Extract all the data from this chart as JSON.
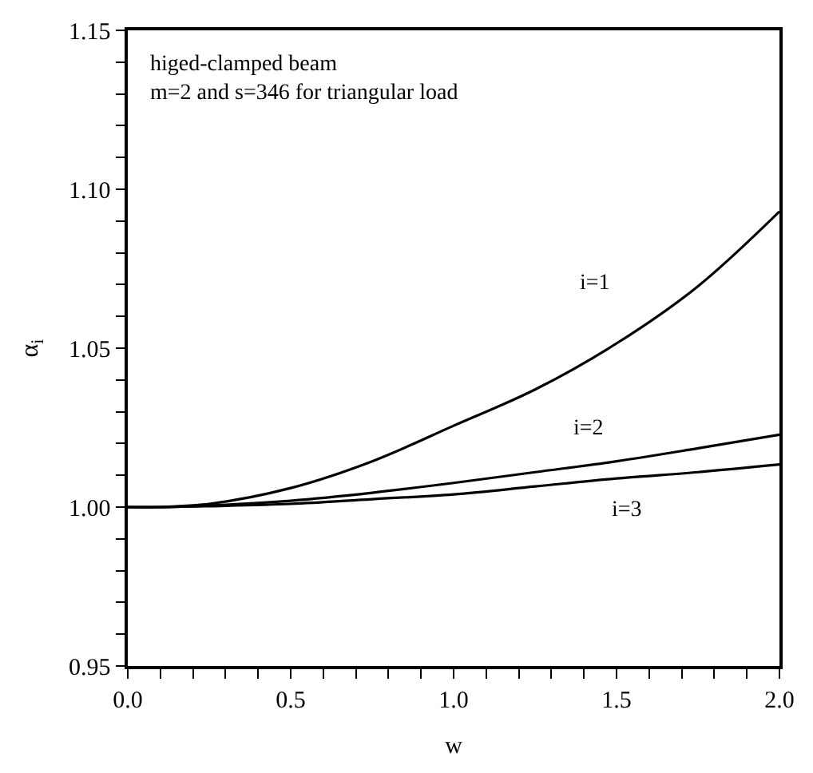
{
  "chart_data": {
    "type": "line",
    "xlabel": "w",
    "ylabel": "α$_{i}$",
    "x": [
      0,
      0.1,
      0.25,
      0.5,
      0.75,
      1.0,
      1.25,
      1.5,
      1.75,
      2.0
    ],
    "series": [
      {
        "name": "i=1",
        "color": "#000000",
        "values": [
          1.0,
          1.0,
          1.001,
          1.006,
          1.0144,
          1.0256,
          1.037,
          1.0515,
          1.0695,
          1.093
        ]
      },
      {
        "name": "i=2",
        "color": "#000000",
        "values": [
          1.0,
          1.0,
          1.0005,
          1.002,
          1.0045,
          1.0076,
          1.011,
          1.0144,
          1.0185,
          1.0228
        ]
      },
      {
        "name": "i=3",
        "color": "#000000",
        "values": [
          1.0,
          1.0,
          1.0003,
          1.001,
          1.0025,
          1.004,
          1.0065,
          1.009,
          1.011,
          1.0134
        ]
      }
    ],
    "annotations": [
      "higed-clamped beam\nm=2 and s=346 for triangular load"
    ],
    "xlim": [
      0,
      2
    ],
    "ylim": [
      0.95,
      1.15
    ],
    "xticks": [
      {
        "value": 0.0,
        "label": "0.0"
      },
      {
        "value": 0.1,
        "label": null
      },
      {
        "value": 0.2,
        "label": null
      },
      {
        "value": 0.3,
        "label": null
      },
      {
        "value": 0.4,
        "label": null
      },
      {
        "value": 0.5,
        "label": "0.5"
      },
      {
        "value": 0.6,
        "label": null
      },
      {
        "value": 0.7,
        "label": null
      },
      {
        "value": 0.8,
        "label": null
      },
      {
        "value": 0.9,
        "label": null
      },
      {
        "value": 1.0,
        "label": "1.0"
      },
      {
        "value": 1.1,
        "label": null
      },
      {
        "value": 1.2,
        "label": null
      },
      {
        "value": 1.3,
        "label": null
      },
      {
        "value": 1.4,
        "label": null
      },
      {
        "value": 1.5,
        "label": "1.5"
      },
      {
        "value": 1.6,
        "label": null
      },
      {
        "value": 1.7,
        "label": null
      },
      {
        "value": 1.8,
        "label": null
      },
      {
        "value": 1.9,
        "label": null
      },
      {
        "value": 2.0,
        "label": "2.0"
      }
    ],
    "yticks": [
      {
        "value": 0.95,
        "label": "0.95"
      },
      {
        "value": 0.96,
        "label": null
      },
      {
        "value": 0.97,
        "label": null
      },
      {
        "value": 0.98,
        "label": null
      },
      {
        "value": 0.99,
        "label": null
      },
      {
        "value": 1.0,
        "label": "1.00"
      },
      {
        "value": 1.01,
        "label": null
      },
      {
        "value": 1.02,
        "label": null
      },
      {
        "value": 1.03,
        "label": null
      },
      {
        "value": 1.04,
        "label": null
      },
      {
        "value": 1.05,
        "label": "1.05"
      },
      {
        "value": 1.06,
        "label": null
      },
      {
        "value": 1.07,
        "label": null
      },
      {
        "value": 1.08,
        "label": null
      },
      {
        "value": 1.09,
        "label": null
      },
      {
        "value": 1.1,
        "label": "1.10"
      },
      {
        "value": 1.11,
        "label": null
      },
      {
        "value": 1.12,
        "label": null
      },
      {
        "value": 1.13,
        "label": null
      },
      {
        "value": 1.14,
        "label": null
      },
      {
        "value": 1.15,
        "label": "1.15"
      }
    ],
    "grid": false,
    "legend": false,
    "marker": "none",
    "line_style": "solid"
  }
}
